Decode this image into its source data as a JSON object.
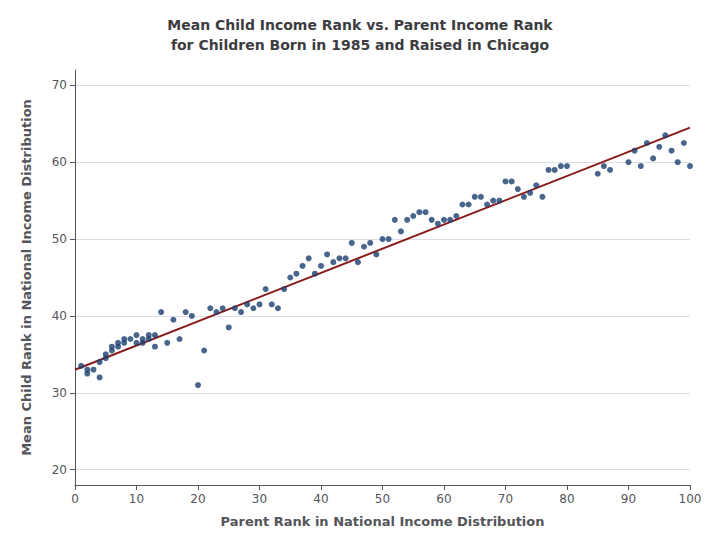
{
  "chart_data": {
    "type": "scatter",
    "title": "Mean Child Income Rank vs. Parent Income Rank\nfor Children Born in 1985 and Raised in Chicago",
    "xlabel": "Parent Rank in National Income Distribution",
    "ylabel": "Mean Child Rank in National Income Distribution",
    "xlim": [
      0,
      100
    ],
    "ylim": [
      18,
      72
    ],
    "xticks": [
      0,
      10,
      20,
      30,
      40,
      50,
      60,
      70,
      80,
      90,
      100
    ],
    "yticks": [
      20,
      30,
      40,
      50,
      60,
      70
    ],
    "grid": true,
    "series": [
      {
        "type": "scatter",
        "color": "#1a3f6f",
        "x": [
          1,
          2,
          2,
          3,
          4,
          4,
          5,
          5,
          6,
          6,
          7,
          7,
          8,
          8,
          9,
          10,
          10,
          11,
          11,
          12,
          12,
          13,
          13,
          14,
          15,
          16,
          17,
          18,
          19,
          20,
          21,
          22,
          23,
          24,
          25,
          26,
          27,
          28,
          29,
          30,
          31,
          32,
          33,
          34,
          35,
          36,
          37,
          38,
          39,
          40,
          41,
          42,
          43,
          44,
          45,
          46,
          47,
          48,
          49,
          50,
          51,
          52,
          53,
          54,
          55,
          56,
          57,
          58,
          59,
          60,
          61,
          62,
          63,
          64,
          65,
          66,
          67,
          68,
          69,
          70,
          71,
          72,
          73,
          74,
          75,
          76,
          77,
          78,
          79,
          80,
          85,
          86,
          87,
          90,
          91,
          92,
          93,
          94,
          95,
          96,
          97,
          98,
          99,
          100
        ],
        "values": [
          33.5,
          32.5,
          33.0,
          33.0,
          34.0,
          32.0,
          35.0,
          34.5,
          36.0,
          35.5,
          36.5,
          36.0,
          36.5,
          37.0,
          37.0,
          36.5,
          37.5,
          37.0,
          36.5,
          37.5,
          37.0,
          36.0,
          37.5,
          40.5,
          36.5,
          39.5,
          37.0,
          40.5,
          40.0,
          31.0,
          35.5,
          41.0,
          40.5,
          41.0,
          38.5,
          41.0,
          40.5,
          41.5,
          41.0,
          41.5,
          43.5,
          41.5,
          41.0,
          43.5,
          45.0,
          45.5,
          46.5,
          47.5,
          45.5,
          46.5,
          48.0,
          47.0,
          47.5,
          47.5,
          49.5,
          47.0,
          49.0,
          49.5,
          48.0,
          50.0,
          50.0,
          52.5,
          51.0,
          52.5,
          53.0,
          53.5,
          53.5,
          52.5,
          52.0,
          52.5,
          52.5,
          53.0,
          54.5,
          54.5,
          55.5,
          55.5,
          54.5,
          55.0,
          55.0,
          57.5,
          57.5,
          56.5,
          55.5,
          56.0,
          57.0,
          55.5,
          59.0,
          59.0,
          59.5,
          59.5,
          58.5,
          59.5,
          59.0,
          60.0,
          61.5,
          59.5,
          62.5,
          60.5,
          62.0,
          63.5,
          61.5,
          60.0,
          62.5,
          59.5
        ]
      },
      {
        "type": "line",
        "color": "#8b1a1a",
        "x": [
          0,
          100
        ],
        "values": [
          33.0,
          64.5
        ]
      }
    ]
  }
}
